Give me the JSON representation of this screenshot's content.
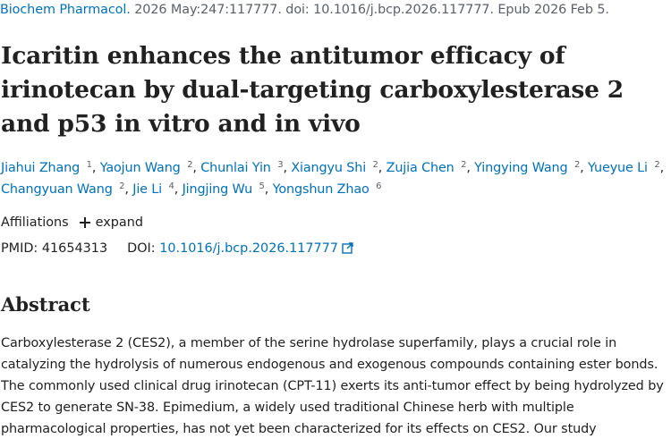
{
  "citation": {
    "journal": "Biochem Pharmacol.",
    "details": " 2026 May:247:117777. doi: 10.1016/j.bcp.2026.117777. Epub 2026 Feb 5."
  },
  "title": "Icaritin enhances the antitumor efficacy of irinotecan by dual-targeting carboxylesterase 2 and p53 in vitro and in vivo",
  "authors": [
    {
      "name": "Jiahui Zhang",
      "aff": "1"
    },
    {
      "name": "Yaojun Wang",
      "aff": "2"
    },
    {
      "name": "Chunlai Yin",
      "aff": "3"
    },
    {
      "name": "Xiangyu Shi",
      "aff": "2"
    },
    {
      "name": "Zujia Chen",
      "aff": "2"
    },
    {
      "name": "Yingying Wang",
      "aff": "2"
    },
    {
      "name": "Yueyue Li",
      "aff": "2"
    },
    {
      "name": "Changyuan Wang",
      "aff": "2"
    },
    {
      "name": "Jie Li",
      "aff": "4"
    },
    {
      "name": "Jingjing Wu",
      "aff": "5"
    },
    {
      "name": "Yongshun Zhao",
      "aff": "6"
    }
  ],
  "affiliations": {
    "label": "Affiliations",
    "toggle": "expand",
    "icon": "plus-icon"
  },
  "ids": {
    "pmid_label": "PMID:",
    "pmid": "41654313",
    "doi_label": "DOI:",
    "doi": "10.1016/j.bcp.2026.117777",
    "doi_icon": "external-link-icon"
  },
  "abstract": {
    "heading": "Abstract",
    "text": "Carboxylesterase 2 (CES2), a member of the serine hydrolase superfamily, plays a crucial role in catalyzing the hydrolysis of numerous endogenous and exogenous compounds containing ester bonds. The commonly used clinical drug irinotecan (CPT-11) exerts its anti-tumor effect by being hydrolyzed by CES2 to generate SN-38. Epimedium, a widely used traditional Chinese herb with multiple pharmacological properties, has not yet been characterized for its effects on CES2. Our study"
  },
  "colors": {
    "link": "#0071bc",
    "text": "#212121",
    "muted": "#5b616b",
    "background": "#ffffff"
  }
}
